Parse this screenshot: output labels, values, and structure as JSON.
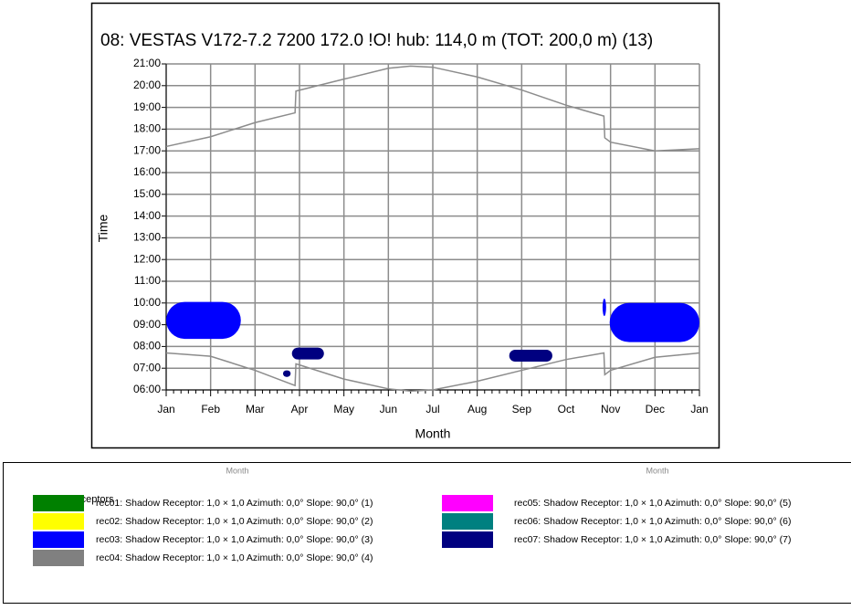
{
  "chart_data": {
    "type": "shadow-calendar",
    "title": "08: VESTAS V172-7.2 7200 172.0 !O! hub: 114,0 m (TOT: 200,0 m) (13)",
    "xlabel": "Month",
    "ylabel": "Time",
    "xlim": [
      0,
      12
    ],
    "xticks": [
      {
        "value": 0,
        "label": "Jan"
      },
      {
        "value": 1,
        "label": "Feb"
      },
      {
        "value": 2,
        "label": "Mar"
      },
      {
        "value": 3,
        "label": "Apr"
      },
      {
        "value": 4,
        "label": "May"
      },
      {
        "value": 5,
        "label": "Jun"
      },
      {
        "value": 6,
        "label": "Jul"
      },
      {
        "value": 7,
        "label": "Aug"
      },
      {
        "value": 8,
        "label": "Sep"
      },
      {
        "value": 9,
        "label": "Oct"
      },
      {
        "value": 10,
        "label": "Nov"
      },
      {
        "value": 11,
        "label": "Dec"
      },
      {
        "value": 12,
        "label": "Jan"
      }
    ],
    "ylim": [
      6,
      21
    ],
    "yticks": [
      {
        "value": 6,
        "label": "06:00"
      },
      {
        "value": 7,
        "label": "07:00"
      },
      {
        "value": 8,
        "label": "08:00"
      },
      {
        "value": 9,
        "label": "09:00"
      },
      {
        "value": 10,
        "label": "10:00"
      },
      {
        "value": 11,
        "label": "11:00"
      },
      {
        "value": 12,
        "label": "12:00"
      },
      {
        "value": 13,
        "label": "13:00"
      },
      {
        "value": 14,
        "label": "14:00"
      },
      {
        "value": 15,
        "label": "15:00"
      },
      {
        "value": 16,
        "label": "16:00"
      },
      {
        "value": 17,
        "label": "17:00"
      },
      {
        "value": 18,
        "label": "18:00"
      },
      {
        "value": 19,
        "label": "19:00"
      },
      {
        "value": 20,
        "label": "20:00"
      },
      {
        "value": 21,
        "label": "21:00"
      }
    ],
    "grid": true,
    "curve_color": "#8c8c8c",
    "curves": [
      {
        "x": [
          0,
          1,
          2,
          2.9,
          2.92,
          4,
          5,
          5.5,
          6,
          7,
          8,
          9,
          9.85,
          9.87,
          10,
          11,
          12
        ],
        "values": [
          17.2,
          17.65,
          18.3,
          18.75,
          19.75,
          20.3,
          20.8,
          20.9,
          20.85,
          20.4,
          19.8,
          19.1,
          18.6,
          17.6,
          17.4,
          17.0,
          17.1
        ]
      },
      {
        "x": [
          0,
          1,
          2,
          2.9,
          2.92,
          3,
          4,
          5,
          5.5,
          6,
          7,
          8,
          9,
          9.85,
          9.87,
          10,
          11,
          12
        ],
        "values": [
          7.7,
          7.55,
          6.9,
          6.2,
          7.2,
          7.15,
          6.5,
          6.05,
          5.95,
          6.0,
          6.4,
          6.9,
          7.4,
          7.7,
          6.7,
          6.9,
          7.5,
          7.7
        ]
      }
    ],
    "shadows": [
      {
        "receptor": 2,
        "x": [
          0,
          1.68
        ],
        "y": [
          8.35,
          10.05
        ]
      },
      {
        "receptor": 2,
        "x": [
          9.98,
          12
        ],
        "y": [
          8.2,
          10.0
        ]
      },
      {
        "receptor": 2,
        "x": [
          9.82,
          9.9
        ],
        "y": [
          9.4,
          10.2
        ]
      },
      {
        "receptor": 6,
        "x": [
          2.83,
          3.55
        ],
        "y": [
          7.4,
          7.95
        ]
      },
      {
        "receptor": 6,
        "x": [
          2.63,
          2.8
        ],
        "y": [
          6.6,
          6.9
        ]
      },
      {
        "receptor": 6,
        "x": [
          7.72,
          8.69
        ],
        "y": [
          7.3,
          7.85
        ]
      }
    ]
  },
  "legend": {
    "ghost_labels": [
      "Month",
      "Month"
    ],
    "title": "Shadow receptors",
    "items": [
      {
        "name": "rec01: Shadow Receptor: 1,0 × 1,0  Azimuth: 0,0°  Slope: 90,0° (1)",
        "color": "#008000"
      },
      {
        "name": "rec02: Shadow Receptor: 1,0 × 1,0  Azimuth: 0,0°  Slope: 90,0° (2)",
        "color": "#ffff00"
      },
      {
        "name": "rec03: Shadow Receptor: 1,0 × 1,0  Azimuth: 0,0°  Slope: 90,0° (3)",
        "color": "#0000ff"
      },
      {
        "name": "rec04: Shadow Receptor: 1,0 × 1,0  Azimuth: 0,0°  Slope: 90,0° (4)",
        "color": "#808080"
      },
      {
        "name": "rec05: Shadow Receptor: 1,0 × 1,0  Azimuth: 0,0°  Slope: 90,0° (5)",
        "color": "#ff00ff"
      },
      {
        "name": "rec06: Shadow Receptor: 1,0 × 1,0  Azimuth: 0,0°  Slope: 90,0° (6)",
        "color": "#008080"
      },
      {
        "name": "rec07: Shadow Receptor: 1,0 × 1,0  Azimuth: 0,0°  Slope: 90,0° (7)",
        "color": "#000080"
      }
    ]
  }
}
